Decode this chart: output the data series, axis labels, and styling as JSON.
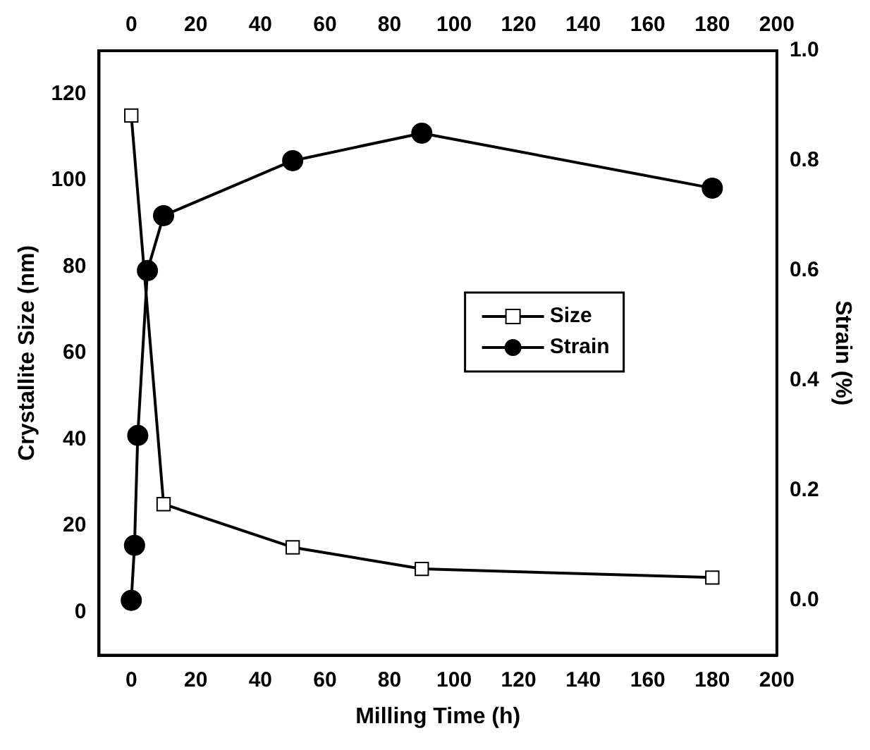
{
  "chart_data": {
    "type": "line",
    "xlabel": "Milling Time (h)",
    "ylabel": "Crystallite Size (nm)",
    "y2label": "Strain (%)",
    "xlim": [
      -10,
      200
    ],
    "xticks": [
      0,
      20,
      40,
      60,
      80,
      100,
      120,
      140,
      160,
      180,
      200
    ],
    "x2lim": [
      -10,
      200
    ],
    "x2ticks": [
      0,
      20,
      40,
      60,
      80,
      100,
      120,
      140,
      160,
      180,
      200
    ],
    "ylim": [
      -10,
      130
    ],
    "yticks": [
      0,
      20,
      40,
      60,
      80,
      100,
      120
    ],
    "y2lim": [
      -0.1,
      1.0
    ],
    "y2ticks": [
      {
        "value": 0,
        "label": "0.0"
      },
      0.2,
      0.4,
      0.6,
      0.8,
      {
        "value": 1,
        "label": "1.0"
      }
    ],
    "series": [
      {
        "name": "Size",
        "color": "#000000",
        "marker": "square",
        "x": [
          0,
          10,
          50,
          90,
          180
        ],
        "values": [
          115,
          25,
          15,
          10,
          8
        ]
      },
      {
        "name": "Strain",
        "color": "#000000",
        "marker": "circle",
        "axis": "y2",
        "x": [
          0,
          1,
          2,
          5,
          10,
          50,
          90,
          180
        ],
        "values": [
          0,
          0.1,
          0.3,
          0.6,
          0.7,
          0.8,
          0.85,
          0.75
        ]
      }
    ],
    "legend": "right",
    "grid": false
  }
}
